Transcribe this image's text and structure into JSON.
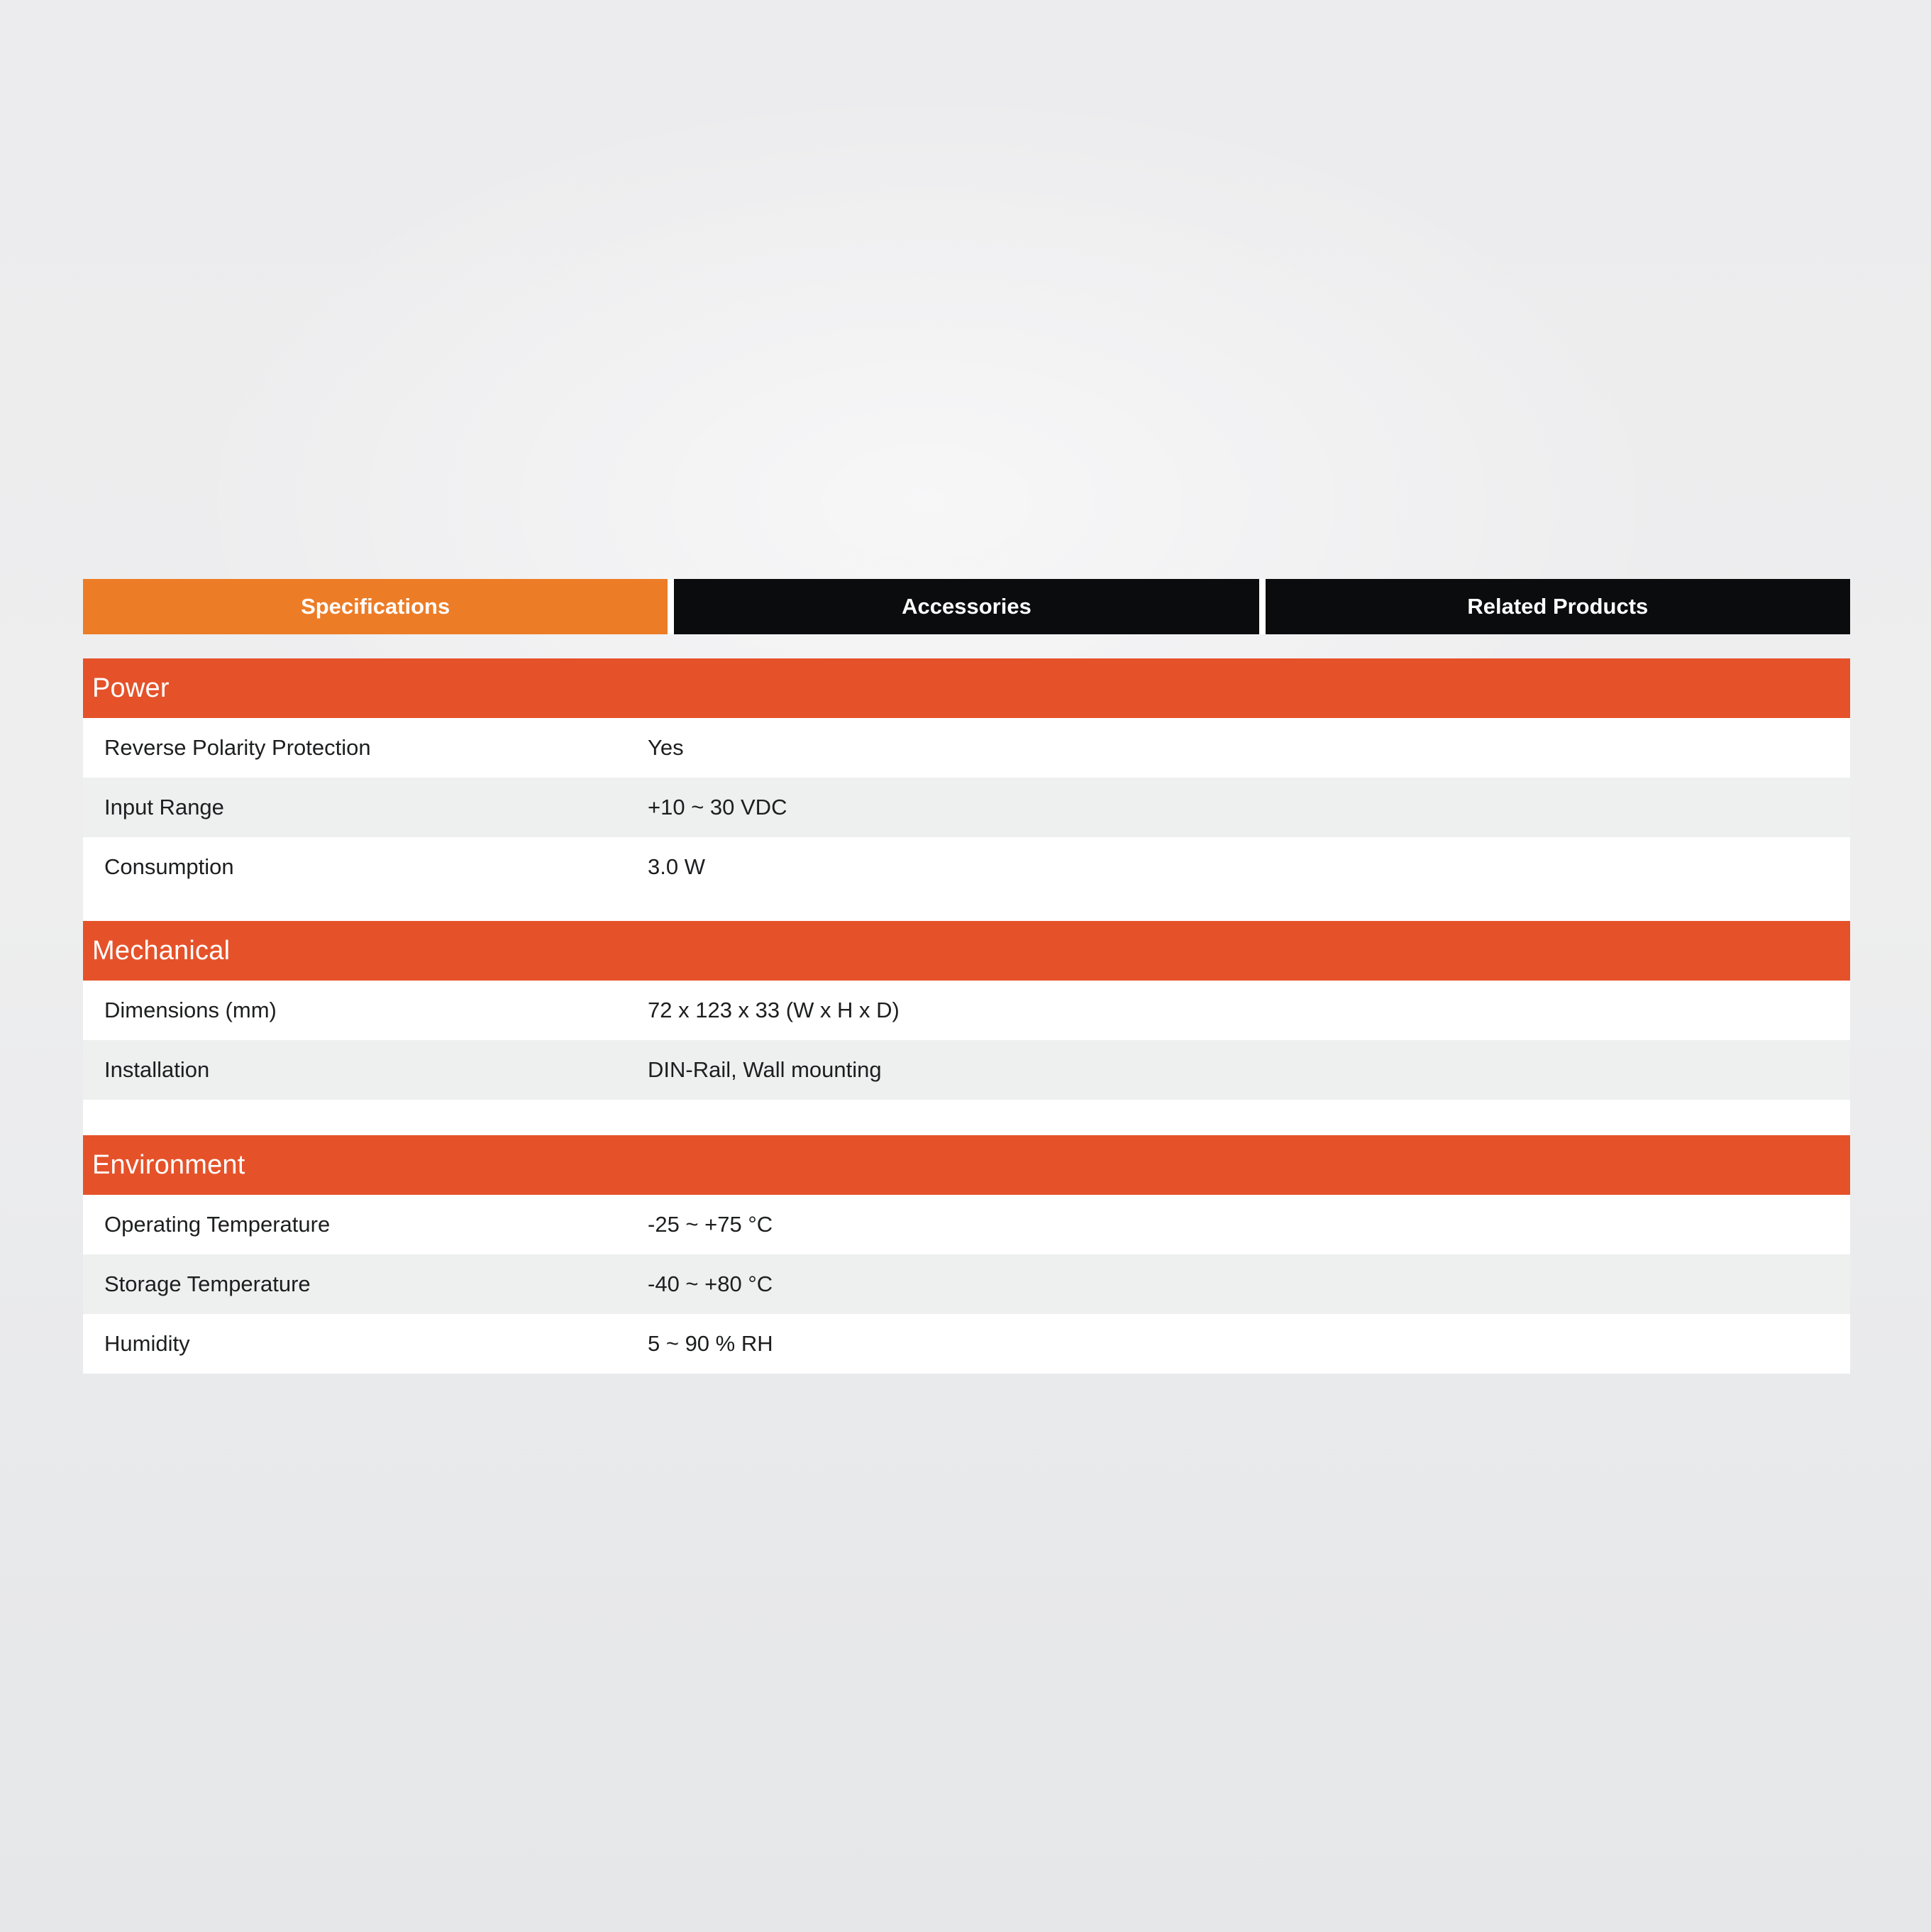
{
  "tabs": {
    "items": [
      {
        "label": "Specifications",
        "active": true
      },
      {
        "label": "Accessories",
        "active": false
      },
      {
        "label": "Related Products",
        "active": false
      }
    ]
  },
  "spec_table": {
    "sections": [
      {
        "title": "Power",
        "rows": [
          {
            "label": "Reverse Polarity Protection",
            "value": "Yes"
          },
          {
            "label": "Input Range",
            "value": "+10 ~ 30 VDC"
          },
          {
            "label": "Consumption",
            "value": "3.0 W"
          }
        ]
      },
      {
        "title": "Mechanical",
        "rows": [
          {
            "label": "Dimensions (mm)",
            "value": "72 x 123 x 33 (W x H x D)"
          },
          {
            "label": "Installation",
            "value": "DIN-Rail, Wall mounting"
          }
        ]
      },
      {
        "title": "Environment",
        "rows": [
          {
            "label": "Operating Temperature",
            "value": "-25 ~ +75 °C"
          },
          {
            "label": "Storage Temperature",
            "value": "-40 ~ +80 °C"
          },
          {
            "label": "Humidity",
            "value": "5 ~ 90 % RH"
          }
        ]
      }
    ]
  },
  "colors": {
    "tab_active": "#ed7c26",
    "tab_inactive": "#0a0c0d",
    "section_header": "#e5522a",
    "row_alt": "#eeefef",
    "row": "#ffffff",
    "text": "#1d1e1f",
    "page_bg": "#ebecee"
  }
}
